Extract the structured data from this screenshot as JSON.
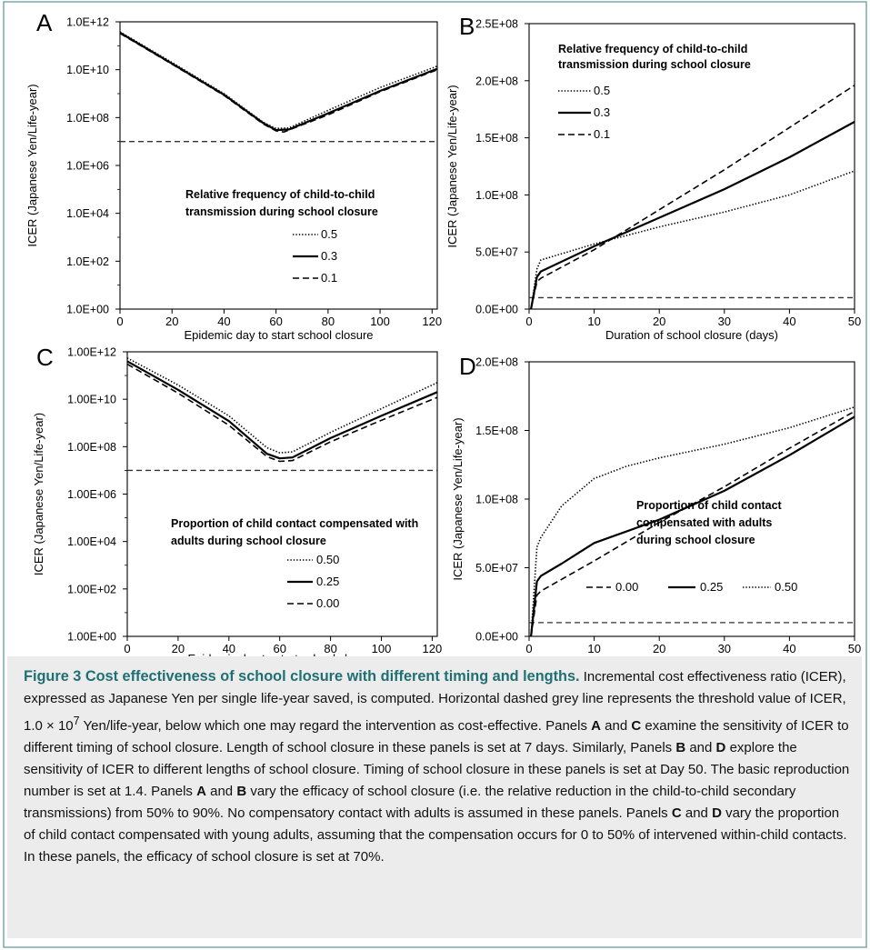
{
  "chart_data": [
    {
      "panel_letter": "A",
      "type": "line",
      "yscale": "log",
      "xlabel": "Epidemic day to start school closure",
      "ylabel": "ICER (Japanese Yen/Life-year)",
      "xlim": [
        0,
        122
      ],
      "ylim": [
        1,
        1000000000000.0
      ],
      "xticks": [
        0,
        20,
        40,
        60,
        80,
        100,
        120
      ],
      "yticks": [
        1,
        100,
        10000,
        1000000,
        100000000,
        10000000000,
        1000000000000
      ],
      "ytick_labels": [
        "1.0E+00",
        "1.0E+02",
        "1.0E+04",
        "1.0E+06",
        "1.0E+08",
        "1.0E+10",
        "1.0E+12"
      ],
      "legend_title_lines": [
        "Relative frequency of child-to-child",
        "transmission during school closure"
      ],
      "legend_position": "center",
      "threshold": 10000000,
      "series": [
        {
          "name": "0.5",
          "style": "dotted",
          "x": [
            0,
            20,
            40,
            55,
            60,
            65,
            80,
            100,
            122
          ],
          "y": [
            380000000000,
            20000000000,
            1000000000,
            65000000,
            35000000,
            37000000,
            200000000,
            1800000000,
            14000000000
          ]
        },
        {
          "name": "0.3",
          "style": "solid",
          "x": [
            0,
            20,
            40,
            55,
            60,
            65,
            80,
            100,
            122
          ],
          "y": [
            350000000000,
            18000000000,
            900000000,
            60000000,
            30000000,
            32000000,
            150000000,
            1300000000,
            11000000000
          ]
        },
        {
          "name": "0.1",
          "style": "dashed",
          "x": [
            0,
            20,
            40,
            55,
            60,
            63,
            80,
            100,
            122
          ],
          "y": [
            330000000000,
            17000000000,
            850000000,
            55000000,
            28000000,
            25000000,
            130000000,
            1200000000,
            10000000000
          ]
        }
      ]
    },
    {
      "panel_letter": "B",
      "type": "line",
      "yscale": "linear",
      "xlabel": "Duration of school closure (days)",
      "ylabel": "ICER (Japanese Yen/Life-year)",
      "xlim": [
        0,
        50
      ],
      "ylim": [
        0,
        250000000
      ],
      "xticks": [
        0,
        10,
        20,
        30,
        40,
        50
      ],
      "yticks": [
        0,
        50000000,
        100000000,
        150000000,
        200000000,
        250000000
      ],
      "ytick_labels": [
        "0.0E+00",
        "5.0E+07",
        "1.0E+08",
        "1.5E+08",
        "2.0E+08",
        "2.5E+08"
      ],
      "legend_title_lines": [
        "Relative frequency of child-to-child",
        "transmission during school closure"
      ],
      "legend_position": "top-left",
      "threshold": 10000000,
      "series": [
        {
          "name": "0.5",
          "style": "dotted",
          "x": [
            0.3,
            1.2,
            1.8,
            10,
            20,
            30,
            40,
            50
          ],
          "y": [
            0,
            35000000,
            43000000,
            57000000,
            72000000,
            85000000,
            100000000,
            121000000
          ]
        },
        {
          "name": "0.3",
          "style": "solid",
          "x": [
            0.3,
            1.2,
            1.8,
            10,
            20,
            30,
            40,
            50
          ],
          "y": [
            0,
            28000000,
            33000000,
            55000000,
            80000000,
            105000000,
            133000000,
            164000000
          ]
        },
        {
          "name": "0.1",
          "style": "dashed",
          "x": [
            0.3,
            1.2,
            1.8,
            10,
            20,
            30,
            40,
            50
          ],
          "y": [
            0,
            24000000,
            27000000,
            52000000,
            87000000,
            122000000,
            159000000,
            196000000
          ]
        }
      ]
    },
    {
      "panel_letter": "C",
      "type": "line",
      "yscale": "log",
      "xlabel": "Epidemic day to start school closure",
      "ylabel": "ICER (Japanese Yen/Life-year)",
      "xlim": [
        0,
        122
      ],
      "ylim": [
        1,
        1000000000000.0
      ],
      "xticks": [
        0,
        20,
        40,
        60,
        80,
        100,
        120
      ],
      "yticks": [
        1,
        100,
        10000,
        1000000,
        100000000,
        10000000000,
        1000000000000
      ],
      "ytick_labels": [
        "1.00E+00",
        "1.00E+02",
        "1.00E+04",
        "1.00E+06",
        "1.00E+08",
        "1.00E+10",
        "1.00E+12"
      ],
      "legend_title_lines": [
        "Proportion  of child contact compensated with",
        "adults during school closure"
      ],
      "legend_position": "center",
      "threshold": 10000000,
      "series": [
        {
          "name": "0.50",
          "style": "dotted",
          "x": [
            0,
            20,
            40,
            55,
            60,
            65,
            80,
            100,
            122
          ],
          "y": [
            550000000000,
            40000000000,
            2000000000,
            90000000,
            55000000,
            60000000,
            400000000,
            4000000000,
            50000000000
          ]
        },
        {
          "name": "0.25",
          "style": "solid",
          "x": [
            0,
            20,
            40,
            55,
            60,
            65,
            80,
            100,
            122
          ],
          "y": [
            400000000000,
            25000000000,
            1200000000,
            50000000,
            32000000,
            35000000,
            230000000,
            2000000000,
            20000000000
          ]
        },
        {
          "name": "0.00",
          "style": "dashed",
          "x": [
            0,
            20,
            40,
            55,
            60,
            65,
            80,
            100,
            122
          ],
          "y": [
            300000000000,
            18000000000,
            800000000,
            38000000,
            24000000,
            26000000,
            160000000,
            1300000000,
            12000000000
          ]
        }
      ]
    },
    {
      "panel_letter": "D",
      "type": "line",
      "yscale": "linear",
      "xlabel": "Duration of school closure (days)",
      "ylabel": "ICER (Japanese Yen/Life-year)",
      "xlim": [
        0,
        50
      ],
      "ylim": [
        0,
        200000000
      ],
      "xticks": [
        0,
        10,
        20,
        30,
        40,
        50
      ],
      "yticks": [
        0,
        50000000,
        100000000,
        150000000,
        200000000
      ],
      "ytick_labels": [
        "0.0E+00",
        "5.0E+07",
        "1.0E+08",
        "1.5E+08",
        "2.0E+08"
      ],
      "legend_title_lines": [
        "Proportion of child contact",
        "compensated with adults",
        "during school closure"
      ],
      "legend_position": "bottom-right",
      "threshold": 10000000,
      "series": [
        {
          "name": "0.00",
          "style": "dashed",
          "x": [
            0.3,
            1.2,
            1.8,
            10,
            20,
            30,
            40,
            50
          ],
          "y": [
            0,
            30000000,
            33000000,
            55000000,
            83000000,
            109000000,
            137000000,
            164000000
          ]
        },
        {
          "name": "0.25",
          "style": "solid",
          "x": [
            0.3,
            1.2,
            1.8,
            5,
            10,
            20,
            30,
            40,
            50
          ],
          "y": [
            0,
            40000000,
            44000000,
            53000000,
            68000000,
            85000000,
            106000000,
            132000000,
            160000000
          ]
        },
        {
          "name": "0.50",
          "style": "dotted",
          "x": [
            0.3,
            1.2,
            1.8,
            5,
            10,
            15,
            20,
            30,
            40,
            50
          ],
          "y": [
            0,
            65000000,
            72000000,
            95000000,
            115000000,
            124000000,
            130000000,
            140000000,
            152000000,
            167000000
          ]
        }
      ]
    }
  ],
  "caption": {
    "title": "Figure 3 Cost effectiveness of school closure with different timing and lengths.",
    "p1": "Incremental cost effectiveness ratio (ICER), expressed as Japanese Yen per single life-year saved, is computed. Horizontal dashed grey line represents the threshold value of ICER,",
    "threshold_expr": "1.0 × 10",
    "threshold_exp": "7",
    "p2": "Yen/life-year, below which one may regard the intervention as cost-effective. Panels",
    "l_a": "A",
    "and1": "and",
    "l_c": "C",
    "p3": "examine the sensitivity of ICER to different timing of school closure. Length of school closure in these panels is set at 7 days. Similarly, Panels",
    "l_b": "B",
    "and2": "and",
    "l_d": "D",
    "p4": "explore the sensitivity of ICER to different lengths of school closure. Timing of school closure in these panels is set at Day 50. The basic reproduction number is set at 1.4. Panels",
    "l_a2": "A",
    "and3": "and",
    "l_b2": "B",
    "p5": "vary the efficacy of school closure (i.e. the relative reduction in the child-to-child secondary transmissions) from 50% to 90%. No compensatory contact with adults is assumed in these panels. Panels",
    "l_c2": "C",
    "and4": "and",
    "l_d2": "D",
    "p6": "vary the proportion of child contact compensated with young adults, assuming that the compensation occurs for 0 to 50% of intervened within-child contacts. In these panels, the efficacy of school closure is set at 70%."
  },
  "colors": {
    "line": "#000000",
    "threshold": "#333333",
    "caption_bg": "#ececec",
    "caption_title": "#1f6f73",
    "frame": "#7aa9ad"
  }
}
